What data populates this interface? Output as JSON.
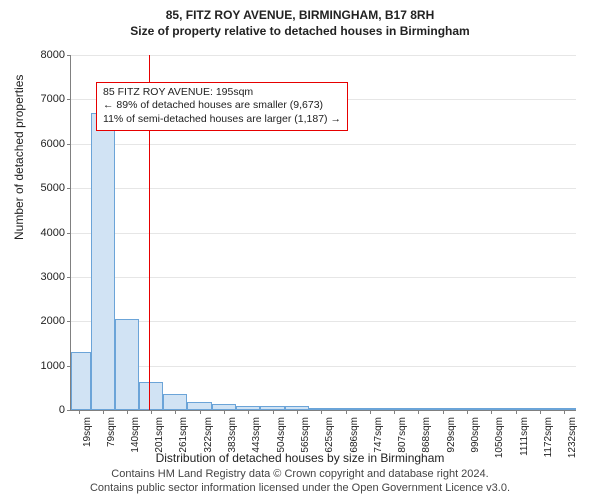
{
  "title": "85, FITZ ROY AVENUE, BIRMINGHAM, B17 8RH",
  "subtitle": "Size of property relative to detached houses in Birmingham",
  "ylabel": "Number of detached properties",
  "xlabel": "Distribution of detached houses by size in Birmingham",
  "footer1": "Contains HM Land Registry data © Crown copyright and database right 2024.",
  "footer2": "Contains public sector information licensed under the Open Government Licence v3.0.",
  "chart": {
    "type": "histogram",
    "ylim": [
      0,
      8000
    ],
    "ytick_step": 1000,
    "xlim": [
      0,
      1262
    ],
    "background_color": "#ffffff",
    "grid_color": "#e6e6e6",
    "axis_color": "#808080",
    "bar_fill": "#d1e3f4",
    "bar_edge": "#6ba4d8",
    "vline_color": "#e60000",
    "vline_x": 195,
    "annotation": {
      "line1": "85 FITZ ROY AVENUE: 195sqm",
      "line2": "← 89% of detached houses are smaller (9,673)",
      "line3": "11% of semi-detached houses are larger (1,187) →"
    },
    "xticks": [
      19,
      79,
      140,
      201,
      261,
      322,
      383,
      443,
      504,
      565,
      625,
      686,
      747,
      807,
      868,
      929,
      990,
      1050,
      1111,
      1172,
      1232
    ],
    "yticks": [
      0,
      1000,
      2000,
      3000,
      4000,
      5000,
      6000,
      7000,
      8000
    ],
    "bars": [
      {
        "x0": 0,
        "x1": 49,
        "y": 1300
      },
      {
        "x0": 49,
        "x1": 109,
        "y": 6700
      },
      {
        "x0": 109,
        "x1": 170,
        "y": 2050
      },
      {
        "x0": 170,
        "x1": 231,
        "y": 640
      },
      {
        "x0": 231,
        "x1": 291,
        "y": 360
      },
      {
        "x0": 291,
        "x1": 352,
        "y": 180
      },
      {
        "x0": 352,
        "x1": 413,
        "y": 130
      },
      {
        "x0": 413,
        "x1": 473,
        "y": 100
      },
      {
        "x0": 473,
        "x1": 534,
        "y": 90
      },
      {
        "x0": 534,
        "x1": 595,
        "y": 80
      },
      {
        "x0": 595,
        "x1": 655,
        "y": 50
      },
      {
        "x0": 655,
        "x1": 716,
        "y": 25
      },
      {
        "x0": 716,
        "x1": 777,
        "y": 20
      },
      {
        "x0": 777,
        "x1": 837,
        "y": 15
      },
      {
        "x0": 837,
        "x1": 898,
        "y": 12
      },
      {
        "x0": 898,
        "x1": 959,
        "y": 10
      },
      {
        "x0": 959,
        "x1": 1020,
        "y": 8
      },
      {
        "x0": 1020,
        "x1": 1080,
        "y": 6
      },
      {
        "x0": 1080,
        "x1": 1141,
        "y": 5
      },
      {
        "x0": 1141,
        "x1": 1202,
        "y": 4
      },
      {
        "x0": 1202,
        "x1": 1262,
        "y": 3
      }
    ]
  },
  "style": {
    "title_fontsize": 12,
    "label_fontsize": 12,
    "tick_fontsize": 11,
    "xtick_fontsize": 10,
    "annotation_fontsize": 10.5,
    "footer_fontsize": 11,
    "footer_color": "#444444"
  }
}
